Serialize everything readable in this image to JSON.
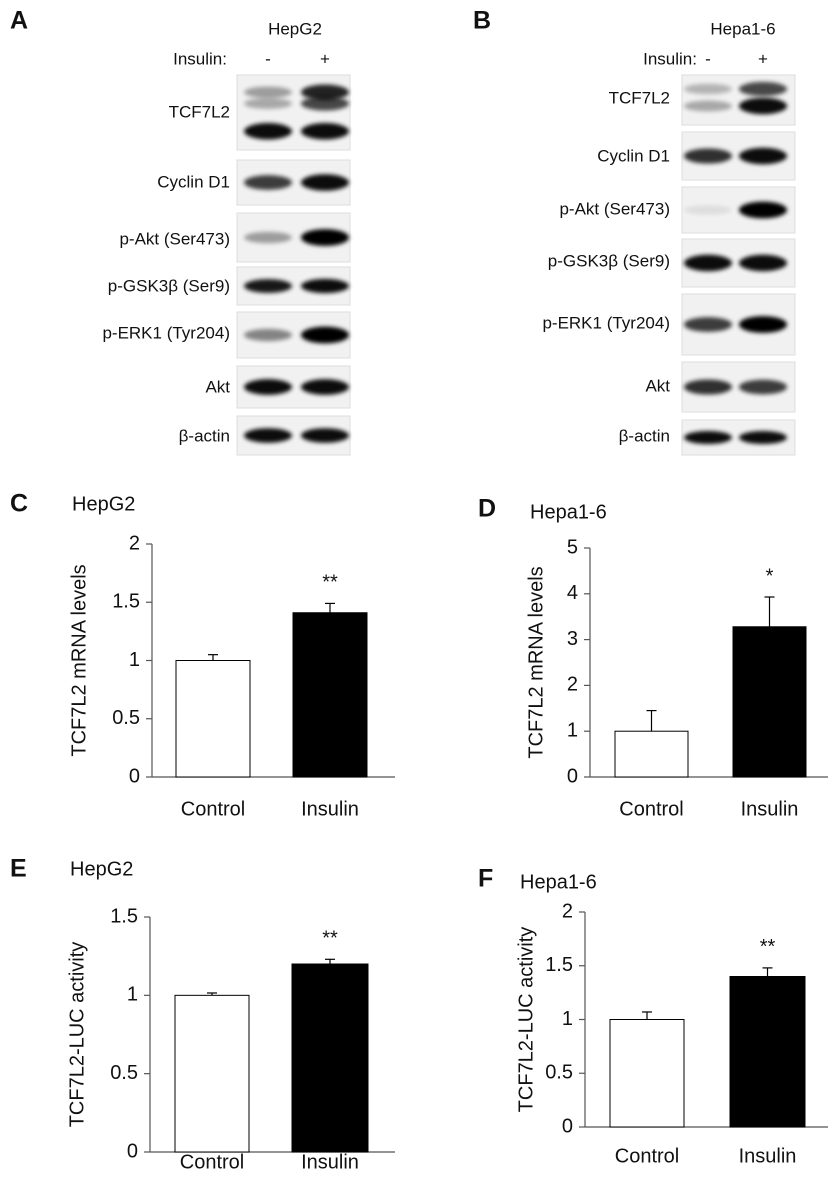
{
  "blots": [
    {
      "panel": "A",
      "cell_line": "HepG2",
      "treatment_label": "Insulin:",
      "lanes": [
        "-",
        "+"
      ],
      "proteins": [
        "TCF7L2",
        "Cyclin D1",
        "p-Akt (Ser473)",
        "p-GSK3β (Ser9)",
        "p-ERK1 (Tyr204)",
        "Akt",
        "β-actin"
      ]
    },
    {
      "panel": "B",
      "cell_line": "Hepa1-6",
      "treatment_label": "Insulin:",
      "lanes": [
        "-",
        "+"
      ],
      "proteins": [
        "TCF7L2",
        "Cyclin D1",
        "p-Akt (Ser473)",
        "p-GSK3β (Ser9)",
        "p-ERK1 (Tyr204)",
        "Akt",
        "β-actin"
      ]
    }
  ],
  "chart_data": [
    {
      "type": "bar",
      "panel": "C",
      "title": "HepG2",
      "ylabel": "TCF7L2 mRNA levels",
      "categories": [
        "Control",
        "Insulin"
      ],
      "values": [
        1.0,
        1.41
      ],
      "errors": [
        0.05,
        0.08
      ],
      "colors": [
        "#ffffff",
        "#000000"
      ],
      "annotation": "**",
      "ylim": [
        0,
        2
      ],
      "yticks": [
        0,
        0.5,
        1,
        1.5,
        2
      ]
    },
    {
      "type": "bar",
      "panel": "D",
      "title": "Hepa1-6",
      "ylabel": "TCF7L2 mRNA levels",
      "categories": [
        "Control",
        "Insulin"
      ],
      "values": [
        1.0,
        3.28
      ],
      "errors": [
        0.45,
        0.65
      ],
      "colors": [
        "#ffffff",
        "#000000"
      ],
      "annotation": "*",
      "ylim": [
        0,
        5
      ],
      "yticks": [
        0,
        1,
        2,
        3,
        4,
        5
      ]
    },
    {
      "type": "bar",
      "panel": "E",
      "title": "HepG2",
      "ylabel": "TCF7L2-LUC activity",
      "categories": [
        "Control",
        "Insulin"
      ],
      "values": [
        1.0,
        1.2
      ],
      "errors": [
        0.015,
        0.03
      ],
      "colors": [
        "#ffffff",
        "#000000"
      ],
      "annotation": "**",
      "ylim": [
        0,
        1.5
      ],
      "yticks": [
        0,
        0.5,
        1,
        1.5
      ]
    },
    {
      "type": "bar",
      "panel": "F",
      "title": "Hepa1-6",
      "ylabel": "TCF7L2-LUC activity",
      "categories": [
        "Control",
        "Insulin"
      ],
      "values": [
        1.0,
        1.4
      ],
      "errors": [
        0.07,
        0.08
      ],
      "colors": [
        "#ffffff",
        "#000000"
      ],
      "annotation": "**",
      "ylim": [
        0,
        2
      ],
      "yticks": [
        0,
        0.5,
        1,
        1.5,
        2
      ]
    }
  ]
}
